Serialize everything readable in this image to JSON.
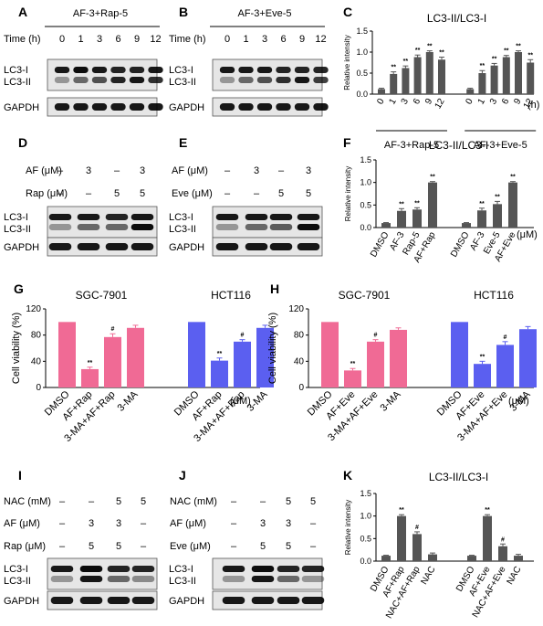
{
  "panels": {
    "A": {
      "letter": "A",
      "title": "AF-3+Rap-5",
      "time_label": "Time (h)",
      "times": [
        "0",
        "1",
        "3",
        "6",
        "9",
        "12"
      ],
      "lanes": [
        "LC3-I",
        "LC3-II",
        "GAPDH"
      ]
    },
    "B": {
      "letter": "B",
      "title": "AF-3+Eve-5",
      "time_label": "Time (h)",
      "times": [
        "0",
        "1",
        "3",
        "6",
        "9",
        "12"
      ],
      "lanes": [
        "LC3-I",
        "LC3-II",
        "GAPDH"
      ]
    },
    "D": {
      "letter": "D",
      "rows": [
        {
          "label": "AF (μM)",
          "cells": [
            "–",
            "3",
            "–",
            "3"
          ]
        },
        {
          "label": "Rap (μM)",
          "cells": [
            "–",
            "–",
            "5",
            "5"
          ]
        }
      ],
      "lanes": [
        "LC3-I",
        "LC3-II",
        "GAPDH"
      ]
    },
    "E": {
      "letter": "E",
      "rows": [
        {
          "label": "AF (μM)",
          "cells": [
            "–",
            "3",
            "–",
            "3"
          ]
        },
        {
          "label": "Eve (μM)",
          "cells": [
            "–",
            "–",
            "5",
            "5"
          ]
        }
      ],
      "lanes": [
        "LC3-I",
        "LC3-II",
        "GAPDH"
      ]
    },
    "I": {
      "letter": "I",
      "rows": [
        {
          "label": "NAC (mM)",
          "cells": [
            "–",
            "–",
            "5",
            "5"
          ]
        },
        {
          "label": "AF (μM)",
          "cells": [
            "–",
            "3",
            "3",
            "–"
          ]
        },
        {
          "label": "Rap (μM)",
          "cells": [
            "–",
            "5",
            "5",
            "–"
          ]
        }
      ],
      "lanes": [
        "LC3-I",
        "LC3-II",
        "GAPDH"
      ]
    },
    "J": {
      "letter": "J",
      "rows": [
        {
          "label": "NAC (mM)",
          "cells": [
            "–",
            "–",
            "5",
            "5"
          ]
        },
        {
          "label": "AF (μM)",
          "cells": [
            "–",
            "3",
            "3",
            "–"
          ]
        },
        {
          "label": "Eve (μM)",
          "cells": [
            "–",
            "5",
            "5",
            "–"
          ]
        }
      ],
      "lanes": [
        "LC3-I",
        "LC3-II",
        "GAPDH"
      ]
    }
  },
  "chart_data": [
    {
      "id": "C",
      "letter": "C",
      "type": "bar",
      "title": "LC3-II/LC3-I",
      "ylabel": "Relative intensity",
      "ylim": [
        0,
        1.5
      ],
      "yticks": [
        "0.0",
        "0.5",
        "1.0",
        "1.5"
      ],
      "categories": [
        "0",
        "1",
        "3",
        "6",
        "9",
        "12",
        "0",
        "1",
        "3",
        "6",
        "9",
        "12"
      ],
      "values": [
        0.12,
        0.48,
        0.62,
        0.88,
        1.0,
        0.82,
        0.12,
        0.5,
        0.68,
        0.88,
        1.0,
        0.75
      ],
      "errors": [
        0.02,
        0.05,
        0.05,
        0.05,
        0.03,
        0.06,
        0.02,
        0.06,
        0.05,
        0.04,
        0.03,
        0.07
      ],
      "marks": [
        "",
        "**",
        "**",
        "**",
        "**",
        "**",
        "",
        "**",
        "**",
        "**",
        "**",
        "**"
      ],
      "unit": "(h)",
      "groups": [
        {
          "label": "AF-3+Rap-5"
        },
        {
          "label": "AF-3+Eve-5"
        }
      ],
      "bar_color": "#555555"
    },
    {
      "id": "F",
      "letter": "F",
      "type": "bar",
      "title": "LC3-II/LC3-I",
      "ylabel": "Relative intensity",
      "ylim": [
        0,
        1.5
      ],
      "yticks": [
        "0.0",
        "0.5",
        "1.0",
        "1.5"
      ],
      "categories": [
        "DMSO",
        "AF-3",
        "Rap-5",
        "AF+Rap",
        "DMSO",
        "AF-3",
        "Eve-5",
        "AF+Eve"
      ],
      "values": [
        0.1,
        0.37,
        0.4,
        1.0,
        0.1,
        0.38,
        0.52,
        1.0
      ],
      "errors": [
        0.01,
        0.05,
        0.04,
        0.02,
        0.01,
        0.05,
        0.06,
        0.02
      ],
      "marks": [
        "",
        "**",
        "**",
        "**",
        "",
        "**",
        "**",
        "**"
      ],
      "unit": "(μM)",
      "bar_color": "#555555"
    },
    {
      "id": "G",
      "letter": "G",
      "type": "bar",
      "ylabel": "Cell viability (%)",
      "ylim": [
        0,
        120
      ],
      "yticks": [
        "0",
        "40",
        "80",
        "120"
      ],
      "categories": [
        "DMSO",
        "AF+Rap",
        "3-MA+AF+Rap",
        "3-MA",
        "DMSO",
        "AF+Rap",
        "3-MA+AF+Rap",
        "3-MA"
      ],
      "values": [
        100,
        28,
        77,
        91,
        100,
        41,
        70,
        91
      ],
      "errors": [
        0,
        3,
        5,
        4,
        0,
        4,
        3,
        4
      ],
      "marks": [
        "",
        "**",
        "#",
        "",
        "",
        "**",
        "#",
        ""
      ],
      "colors": [
        "#f06a95",
        "#f06a95",
        "#f06a95",
        "#f06a95",
        "#5b5ff0",
        "#5b5ff0",
        "#5b5ff0",
        "#5b5ff0"
      ],
      "unit": "(μM)",
      "groups": [
        {
          "label": "SGC-7901"
        },
        {
          "label": "HCT116"
        }
      ]
    },
    {
      "id": "H",
      "letter": "H",
      "type": "bar",
      "ylabel": "Cell viability (%)",
      "ylim": [
        0,
        120
      ],
      "yticks": [
        "0",
        "40",
        "80",
        "120"
      ],
      "categories": [
        "DMSO",
        "AF+Eve",
        "3-MA+AF+Eve",
        "3-MA",
        "DMSO",
        "AF+Eve",
        "3-MA+AF+Eve",
        "3-MA"
      ],
      "values": [
        100,
        26,
        70,
        88,
        100,
        36,
        65,
        89
      ],
      "errors": [
        0,
        3,
        3,
        3,
        0,
        4,
        5,
        4
      ],
      "marks": [
        "",
        "**",
        "#",
        "",
        "",
        "**",
        "#",
        ""
      ],
      "colors": [
        "#f06a95",
        "#f06a95",
        "#f06a95",
        "#f06a95",
        "#5b5ff0",
        "#5b5ff0",
        "#5b5ff0",
        "#5b5ff0"
      ],
      "unit": "(μM)",
      "groups": [
        {
          "label": "SGC-7901"
        },
        {
          "label": "HCT116"
        }
      ]
    },
    {
      "id": "K",
      "letter": "K",
      "type": "bar",
      "title": "LC3-II/LC3-I",
      "ylabel": "Relative intensity",
      "ylim": [
        0,
        1.5
      ],
      "yticks": [
        "0.0",
        "0.5",
        "1.0",
        "1.5"
      ],
      "categories": [
        "DMSO",
        "AF+Rap",
        "NAC+AF+Rap",
        "NAC",
        "DMSO",
        "AF+Eve",
        "NAC+AF+Eve",
        "NAC"
      ],
      "values": [
        0.12,
        1.0,
        0.6,
        0.15,
        0.12,
        1.0,
        0.33,
        0.12
      ],
      "errors": [
        0.01,
        0.03,
        0.05,
        0.03,
        0.01,
        0.03,
        0.05,
        0.03
      ],
      "marks": [
        "",
        "**",
        "#",
        "",
        "",
        "**",
        "#",
        ""
      ],
      "bar_color": "#555555"
    }
  ]
}
